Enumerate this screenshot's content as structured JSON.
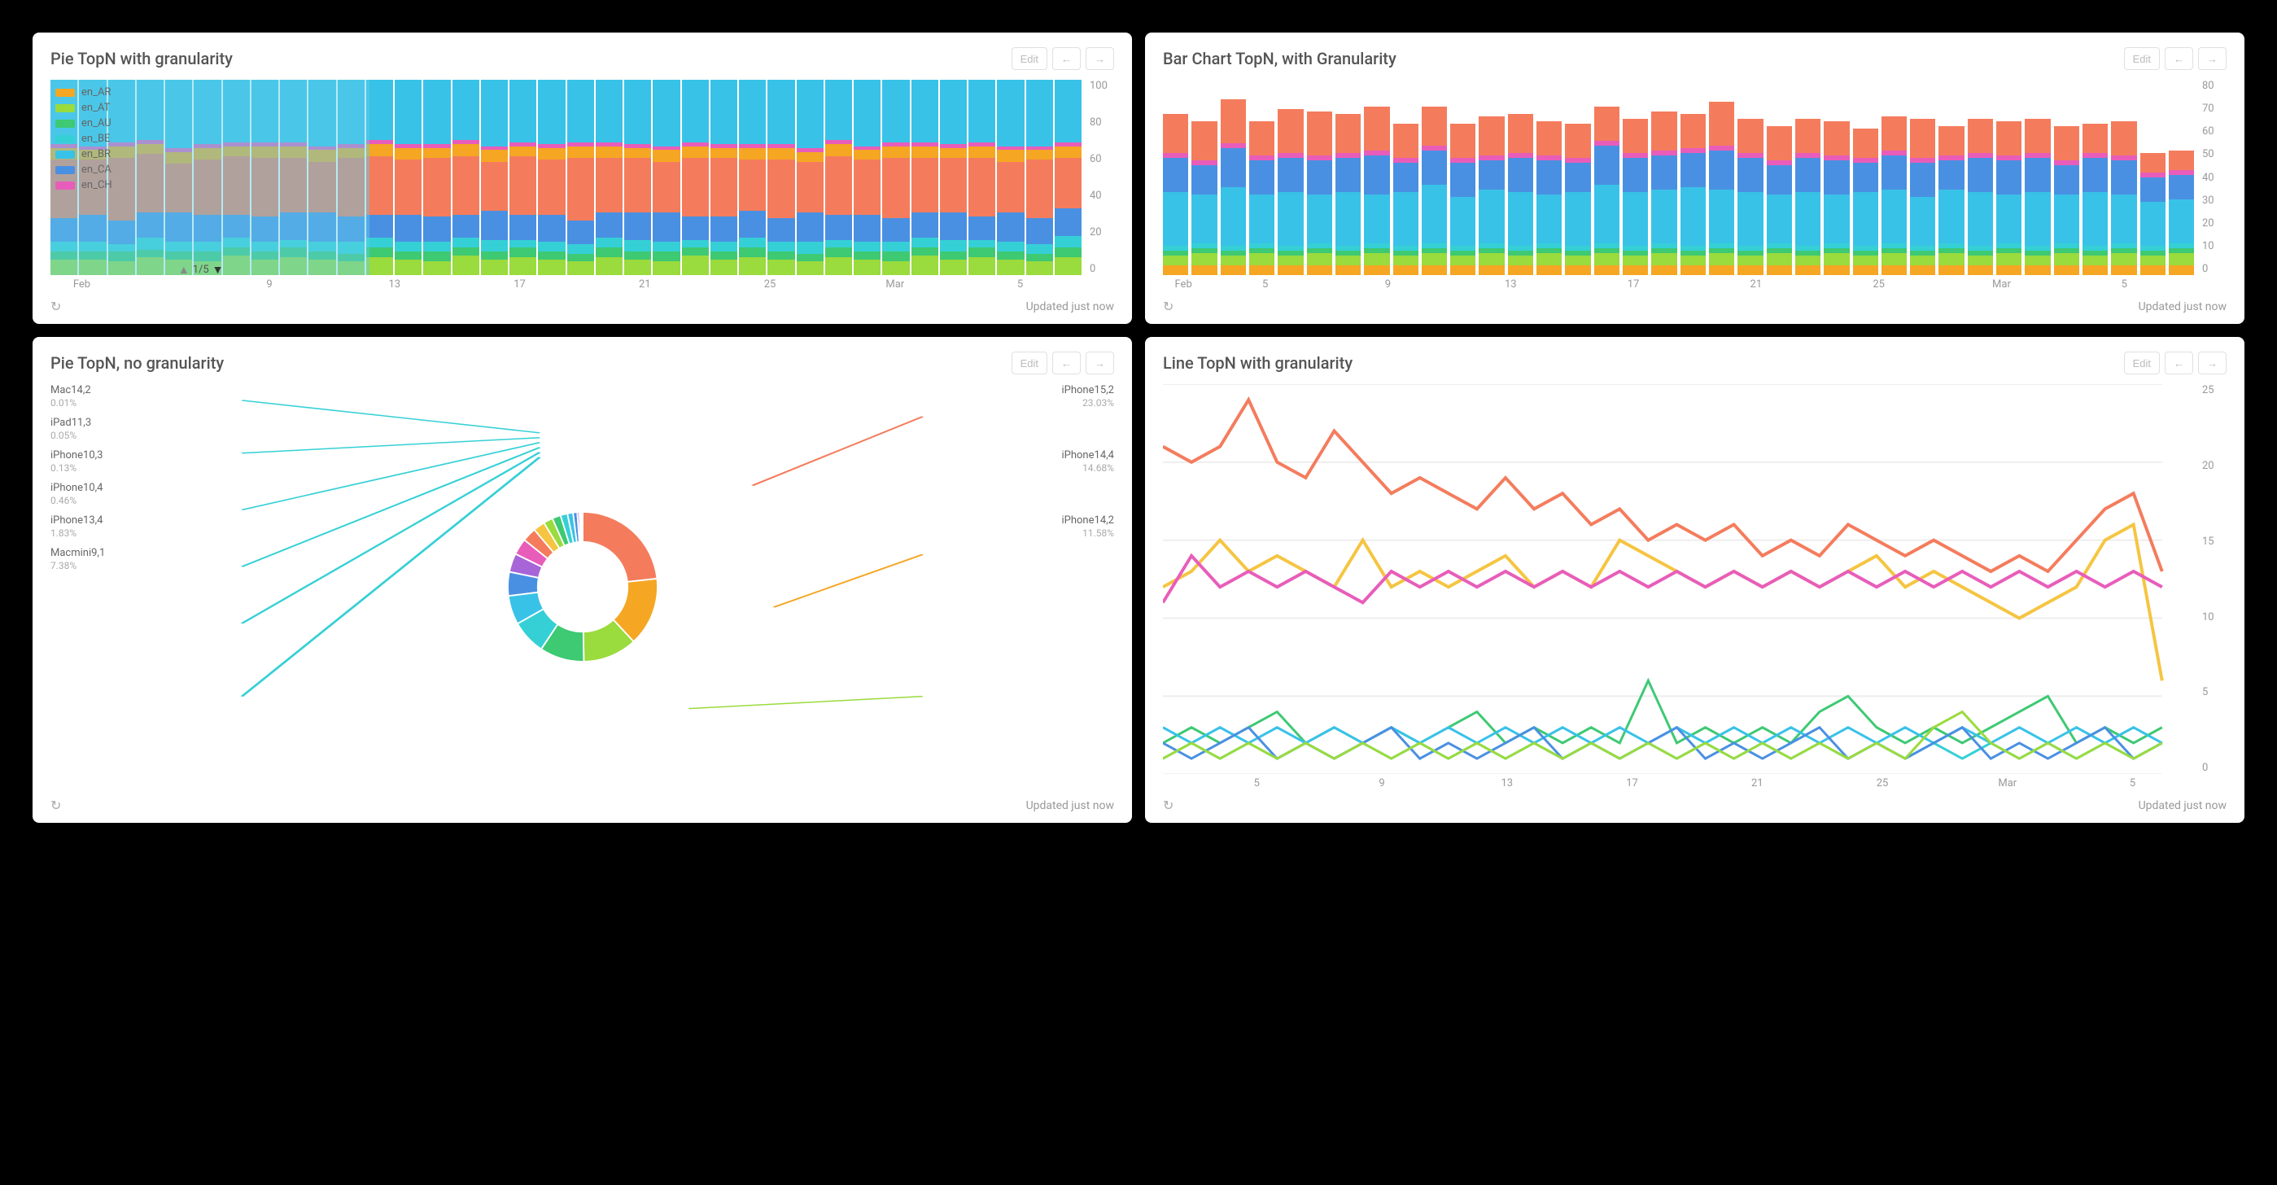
{
  "colors": {
    "orange": "#f5a623",
    "lime": "#9adb3d",
    "green": "#3ec973",
    "teal": "#35d0d6",
    "cyan": "#39c2e8",
    "blue": "#4a90e2",
    "pink": "#e85dba",
    "coral": "#f47c5d",
    "yellow": "#f5c542",
    "purple": "#a765d8",
    "text_muted": "#999999",
    "panel_bg": "#ffffff"
  },
  "panels": {
    "A": {
      "title": "Pie TopN with granularity",
      "edit_label": "Edit",
      "updated": "Updated just now",
      "pager": "1/5",
      "ylim": [
        0,
        100
      ],
      "ytick_step": 20,
      "x_labels": [
        "Feb",
        "",
        "",
        "9",
        "",
        "13",
        "",
        "17",
        "",
        "21",
        "",
        "25",
        "",
        "Mar",
        "",
        "5",
        ""
      ],
      "legend": [
        {
          "label": "en_AR",
          "color": "#f5a623"
        },
        {
          "label": "en_AT",
          "color": "#9adb3d"
        },
        {
          "label": "en_AU",
          "color": "#3ec973"
        },
        {
          "label": "en_BE",
          "color": "#35d0d6"
        },
        {
          "label": "en_BR",
          "color": "#39c2e8"
        },
        {
          "label": "en_CA",
          "color": "#4a90e2"
        },
        {
          "label": "en_CH",
          "color": "#e85dba"
        }
      ],
      "series_order": [
        "#9adb3d",
        "#3ec973",
        "#35d0d6",
        "#4a90e2",
        "#f47c5d",
        "#f5a623",
        "#e85dba",
        "#39c2e8"
      ],
      "bars": [
        [
          8,
          4,
          5,
          12,
          30,
          6,
          2,
          33
        ],
        [
          8,
          4,
          5,
          14,
          28,
          5,
          2,
          34
        ],
        [
          7,
          5,
          4,
          12,
          32,
          6,
          2,
          32
        ],
        [
          9,
          4,
          6,
          13,
          30,
          5,
          2,
          31
        ],
        [
          8,
          4,
          5,
          15,
          25,
          6,
          2,
          35
        ],
        [
          7,
          5,
          5,
          14,
          28,
          6,
          2,
          33
        ],
        [
          10,
          4,
          5,
          12,
          30,
          5,
          2,
          32
        ],
        [
          8,
          4,
          5,
          13,
          30,
          6,
          2,
          32
        ],
        [
          9,
          5,
          4,
          14,
          28,
          6,
          2,
          32
        ],
        [
          8,
          4,
          5,
          15,
          26,
          6,
          2,
          34
        ],
        [
          7,
          4,
          6,
          13,
          30,
          5,
          2,
          33
        ],
        [
          9,
          5,
          5,
          12,
          30,
          6,
          2,
          31
        ],
        [
          8,
          4,
          5,
          14,
          28,
          6,
          2,
          33
        ],
        [
          7,
          5,
          5,
          13,
          30,
          5,
          2,
          33
        ],
        [
          10,
          4,
          5,
          12,
          30,
          6,
          2,
          31
        ],
        [
          8,
          4,
          6,
          15,
          25,
          6,
          2,
          34
        ],
        [
          9,
          5,
          4,
          13,
          30,
          5,
          2,
          32
        ],
        [
          8,
          4,
          5,
          14,
          28,
          6,
          2,
          33
        ],
        [
          7,
          4,
          5,
          12,
          32,
          6,
          2,
          32
        ],
        [
          9,
          5,
          5,
          13,
          28,
          6,
          2,
          32
        ],
        [
          8,
          4,
          6,
          14,
          28,
          5,
          2,
          33
        ],
        [
          7,
          5,
          5,
          15,
          26,
          6,
          2,
          34
        ],
        [
          10,
          4,
          4,
          12,
          30,
          6,
          2,
          32
        ],
        [
          8,
          4,
          5,
          13,
          30,
          5,
          2,
          33
        ],
        [
          9,
          5,
          5,
          14,
          26,
          6,
          2,
          33
        ],
        [
          8,
          4,
          5,
          12,
          30,
          6,
          2,
          33
        ],
        [
          7,
          4,
          6,
          15,
          26,
          5,
          2,
          35
        ],
        [
          9,
          5,
          4,
          13,
          30,
          6,
          2,
          31
        ],
        [
          8,
          4,
          5,
          14,
          28,
          5,
          2,
          34
        ],
        [
          7,
          5,
          5,
          12,
          31,
          6,
          2,
          32
        ],
        [
          10,
          4,
          5,
          13,
          28,
          6,
          2,
          32
        ],
        [
          8,
          4,
          6,
          14,
          28,
          5,
          2,
          33
        ],
        [
          9,
          5,
          4,
          12,
          30,
          6,
          2,
          32
        ],
        [
          8,
          4,
          5,
          15,
          26,
          6,
          2,
          34
        ],
        [
          7,
          4,
          5,
          13,
          30,
          5,
          2,
          34
        ],
        [
          9,
          5,
          6,
          14,
          26,
          6,
          2,
          32
        ]
      ]
    },
    "B": {
      "title": "Bar Chart TopN, with Granularity",
      "edit_label": "Edit",
      "updated": "Updated just now",
      "ylim": [
        0,
        80
      ],
      "ytick_step": 10,
      "x_labels": [
        "Feb",
        "",
        "5",
        "",
        "",
        "9",
        "",
        "",
        "13",
        "",
        "",
        "17",
        "",
        "",
        "21",
        "",
        "",
        "25",
        "",
        "",
        "Mar",
        "",
        "",
        "5",
        "",
        ""
      ],
      "series_order": [
        "#f5a623",
        "#9adb3d",
        "#3ec973",
        "#35d0d6",
        "#39c2e8",
        "#4a90e2",
        "#e85dba",
        "#f47c5d"
      ],
      "bars": [
        [
          4,
          4,
          2,
          2,
          22,
          14,
          2,
          16
        ],
        [
          4,
          5,
          2,
          2,
          20,
          12,
          2,
          16
        ],
        [
          4,
          4,
          2,
          2,
          24,
          16,
          2,
          18
        ],
        [
          4,
          5,
          2,
          2,
          20,
          14,
          2,
          14
        ],
        [
          4,
          4,
          2,
          2,
          22,
          14,
          2,
          18
        ],
        [
          4,
          5,
          2,
          2,
          20,
          14,
          2,
          18
        ],
        [
          4,
          4,
          2,
          2,
          22,
          14,
          2,
          16
        ],
        [
          4,
          5,
          2,
          2,
          20,
          16,
          2,
          18
        ],
        [
          4,
          4,
          2,
          2,
          22,
          12,
          2,
          14
        ],
        [
          4,
          5,
          2,
          2,
          24,
          14,
          2,
          16
        ],
        [
          4,
          4,
          2,
          2,
          20,
          14,
          2,
          14
        ],
        [
          4,
          5,
          2,
          2,
          22,
          12,
          2,
          16
        ],
        [
          4,
          4,
          2,
          2,
          22,
          14,
          2,
          16
        ],
        [
          4,
          5,
          2,
          2,
          20,
          14,
          2,
          14
        ],
        [
          4,
          4,
          2,
          2,
          22,
          12,
          2,
          14
        ],
        [
          4,
          5,
          2,
          2,
          24,
          16,
          2,
          14
        ],
        [
          4,
          4,
          2,
          2,
          22,
          14,
          2,
          14
        ],
        [
          4,
          5,
          2,
          2,
          22,
          14,
          2,
          16
        ],
        [
          4,
          4,
          2,
          2,
          24,
          14,
          2,
          14
        ],
        [
          4,
          5,
          2,
          2,
          22,
          16,
          2,
          18
        ],
        [
          4,
          4,
          2,
          2,
          22,
          14,
          2,
          14
        ],
        [
          4,
          5,
          2,
          2,
          20,
          12,
          2,
          14
        ],
        [
          4,
          4,
          2,
          2,
          22,
          14,
          2,
          14
        ],
        [
          4,
          5,
          2,
          2,
          20,
          14,
          2,
          14
        ],
        [
          4,
          4,
          2,
          2,
          22,
          12,
          2,
          12
        ],
        [
          4,
          5,
          2,
          2,
          22,
          14,
          2,
          14
        ],
        [
          4,
          4,
          2,
          2,
          20,
          14,
          2,
          16
        ],
        [
          4,
          5,
          2,
          2,
          22,
          12,
          2,
          12
        ],
        [
          4,
          4,
          2,
          2,
          22,
          14,
          2,
          14
        ],
        [
          4,
          5,
          2,
          2,
          20,
          14,
          2,
          14
        ],
        [
          4,
          4,
          2,
          2,
          22,
          14,
          2,
          14
        ],
        [
          4,
          5,
          2,
          2,
          20,
          12,
          2,
          14
        ],
        [
          4,
          4,
          2,
          2,
          22,
          14,
          2,
          12
        ],
        [
          4,
          5,
          2,
          2,
          20,
          14,
          2,
          14
        ],
        [
          4,
          4,
          2,
          2,
          18,
          10,
          2,
          8
        ],
        [
          4,
          5,
          2,
          2,
          18,
          10,
          2,
          8
        ]
      ]
    },
    "C": {
      "title": "Pie TopN, no granularity",
      "edit_label": "Edit",
      "updated": "Updated just now",
      "left_labels": [
        {
          "name": "Mac14,2",
          "pct": "0.01%"
        },
        {
          "name": "iPad11,3",
          "pct": "0.05%"
        },
        {
          "name": "iPhone10,3",
          "pct": "0.13%"
        },
        {
          "name": "iPhone10,4",
          "pct": "0.46%"
        },
        {
          "name": "iPhone13,4",
          "pct": "1.83%"
        },
        {
          "name": "Macmini9,1",
          "pct": "7.38%"
        }
      ],
      "right_labels": [
        {
          "name": "iPhone15,2",
          "pct": "23.03%"
        },
        {
          "name": "iPhone14,4",
          "pct": "14.68%"
        },
        {
          "name": "iPhone14,2",
          "pct": "11.58%"
        }
      ],
      "slices": [
        {
          "color": "#f47c5d",
          "value": 23.03
        },
        {
          "color": "#f5a623",
          "value": 14.68
        },
        {
          "color": "#9adb3d",
          "value": 11.58
        },
        {
          "color": "#3ec973",
          "value": 9.5
        },
        {
          "color": "#35d0d6",
          "value": 7.38
        },
        {
          "color": "#39c2e8",
          "value": 6.2
        },
        {
          "color": "#4a90e2",
          "value": 5.1
        },
        {
          "color": "#a765d8",
          "value": 4.0
        },
        {
          "color": "#e85dba",
          "value": 3.5
        },
        {
          "color": "#f47c5d",
          "value": 3.0
        },
        {
          "color": "#f5c542",
          "value": 2.5
        },
        {
          "color": "#9adb3d",
          "value": 2.0
        },
        {
          "color": "#3ec973",
          "value": 1.83
        },
        {
          "color": "#35d0d6",
          "value": 1.5
        },
        {
          "color": "#39c2e8",
          "value": 1.2
        },
        {
          "color": "#4a90e2",
          "value": 0.9
        },
        {
          "color": "#a765d8",
          "value": 0.46
        },
        {
          "color": "#e85dba",
          "value": 0.3
        },
        {
          "color": "#f5c542",
          "value": 0.2
        },
        {
          "color": "#9adb3d",
          "value": 0.13
        },
        {
          "color": "#3ec973",
          "value": 0.05
        },
        {
          "color": "#35d0d6",
          "value": 0.01
        }
      ]
    },
    "D": {
      "title": "Line TopN with granularity",
      "edit_label": "Edit",
      "updated": "Updated just now",
      "ylim": [
        0,
        25
      ],
      "ytick_step": 5,
      "x_labels": [
        "",
        "5",
        "",
        "9",
        "",
        "13",
        "",
        "17",
        "",
        "21",
        "",
        "25",
        "",
        "Mar",
        "",
        "5",
        ""
      ],
      "lines": [
        {
          "color": "#f47c5d",
          "width": 2,
          "values": [
            21,
            20,
            21,
            24,
            20,
            19,
            22,
            20,
            18,
            19,
            18,
            17,
            19,
            17,
            18,
            16,
            17,
            15,
            16,
            15,
            16,
            14,
            15,
            14,
            16,
            15,
            14,
            15,
            14,
            13,
            14,
            13,
            15,
            17,
            18,
            13
          ]
        },
        {
          "color": "#f5c542",
          "width": 2,
          "values": [
            12,
            13,
            15,
            13,
            14,
            13,
            12,
            15,
            12,
            13,
            12,
            13,
            14,
            12,
            13,
            12,
            15,
            14,
            13,
            12,
            13,
            12,
            13,
            12,
            13,
            14,
            12,
            13,
            12,
            11,
            10,
            11,
            12,
            15,
            16,
            6
          ]
        },
        {
          "color": "#e85dba",
          "width": 2,
          "values": [
            11,
            14,
            12,
            13,
            12,
            13,
            12,
            11,
            13,
            12,
            13,
            12,
            13,
            12,
            13,
            12,
            13,
            12,
            13,
            12,
            13,
            12,
            13,
            12,
            13,
            12,
            13,
            12,
            13,
            12,
            13,
            12,
            13,
            12,
            13,
            12
          ]
        },
        {
          "color": "#3ec973",
          "width": 1.5,
          "values": [
            2,
            3,
            2,
            3,
            4,
            2,
            3,
            2,
            3,
            2,
            3,
            4,
            2,
            3,
            2,
            3,
            2,
            6,
            2,
            3,
            2,
            3,
            2,
            4,
            5,
            3,
            2,
            3,
            2,
            3,
            4,
            5,
            2,
            3,
            2,
            3
          ]
        },
        {
          "color": "#35d0d6",
          "width": 1.5,
          "values": [
            1,
            2,
            1,
            2,
            1,
            2,
            1,
            2,
            1,
            2,
            1,
            2,
            1,
            2,
            1,
            2,
            1,
            2,
            1,
            2,
            1,
            2,
            1,
            2,
            1,
            2,
            1,
            2,
            1,
            2,
            1,
            2,
            1,
            2,
            1,
            2
          ]
        },
        {
          "color": "#39c2e8",
          "width": 1.5,
          "values": [
            3,
            2,
            3,
            2,
            3,
            2,
            3,
            2,
            3,
            2,
            3,
            2,
            3,
            2,
            3,
            2,
            3,
            2,
            3,
            2,
            3,
            2,
            3,
            2,
            3,
            2,
            3,
            2,
            3,
            2,
            3,
            2,
            3,
            2,
            3,
            2
          ]
        },
        {
          "color": "#4a90e2",
          "width": 1.5,
          "values": [
            2,
            1,
            2,
            3,
            1,
            2,
            1,
            2,
            3,
            1,
            2,
            1,
            2,
            3,
            1,
            2,
            1,
            2,
            3,
            1,
            2,
            1,
            2,
            3,
            1,
            2,
            1,
            2,
            3,
            1,
            2,
            1,
            2,
            3,
            1,
            2
          ]
        },
        {
          "color": "#9adb3d",
          "width": 1.5,
          "values": [
            1,
            2,
            1,
            2,
            1,
            2,
            1,
            2,
            1,
            2,
            1,
            2,
            1,
            2,
            1,
            2,
            1,
            2,
            1,
            2,
            1,
            2,
            1,
            2,
            1,
            2,
            1,
            3,
            4,
            2,
            1,
            2,
            1,
            2,
            1,
            2
          ]
        }
      ]
    }
  }
}
